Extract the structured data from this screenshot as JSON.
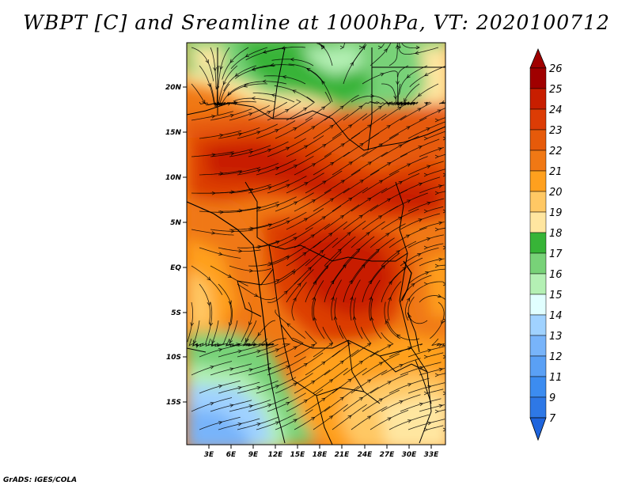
{
  "title": "WBPT [C] and Sreamline at 1000hPa, VT: 2020100712",
  "footer": "GrADS: IGES/COLA",
  "map": {
    "lat_ticks": [
      "20N",
      "15N",
      "10N",
      "5N",
      "EQ",
      "5S",
      "10S",
      "15S"
    ],
    "lon_ticks": [
      "3E",
      "6E",
      "9E",
      "12E",
      "15E",
      "18E",
      "21E",
      "24E",
      "27E",
      "30E",
      "33E"
    ],
    "colors": {
      "c7": "#1e64dc",
      "c9": "#2e78e6",
      "c11": "#3c8cf0",
      "c12": "#5aa0f5",
      "c13": "#78b4fa",
      "c14": "#a0d2ff",
      "c15": "#e1ffff",
      "c16": "#b4f0b4",
      "c17": "#78d278",
      "c18": "#37b437",
      "c19": "#ffe6a0",
      "c20": "#ffc864",
      "c21": "#ffa01e",
      "c22": "#f07814",
      "c23": "#e65a0a",
      "c24": "#dc3c05",
      "c25": "#c81e00",
      "c26": "#a00000"
    }
  },
  "colorbar": {
    "labels": [
      "26",
      "25",
      "24",
      "23",
      "22",
      "21",
      "20",
      "19",
      "18",
      "17",
      "16",
      "15",
      "14",
      "13",
      "12",
      "11",
      "9",
      "7"
    ]
  }
}
